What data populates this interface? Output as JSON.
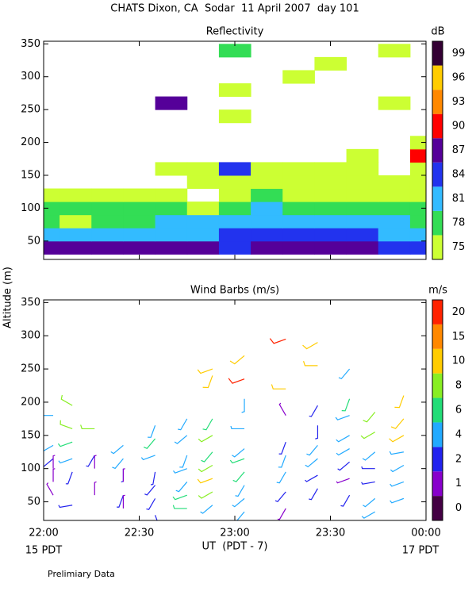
{
  "title": "CHATS Dixon, CA  Sodar  11 April 2007  day 101",
  "y_axis_label": "Altitude (m)",
  "x_axis_label": "UT  (PDT - 7)",
  "start_label": "15 PDT",
  "end_label": "17 PDT",
  "footnote": "Prelimiary Data",
  "chart_data": [
    {
      "type": "heatmap",
      "title": "Reflectivity",
      "x": [
        0,
        10,
        20,
        30,
        40,
        50,
        60,
        70,
        80,
        90,
        100,
        110,
        120
      ],
      "y": [
        40,
        60,
        80,
        100,
        120,
        140,
        160,
        180,
        200,
        220,
        240,
        260,
        280,
        300,
        320,
        340
      ],
      "z": [
        [
          87,
          87,
          87,
          87,
          87,
          87,
          84,
          87,
          87,
          87,
          87,
          84,
          84
        ],
        [
          81,
          81,
          81,
          81,
          81,
          81,
          84,
          84,
          84,
          84,
          84,
          81,
          81
        ],
        [
          78,
          75,
          78,
          78,
          81,
          81,
          81,
          81,
          81,
          81,
          81,
          81,
          78
        ],
        [
          78,
          78,
          78,
          78,
          78,
          75,
          78,
          81,
          78,
          78,
          78,
          78,
          78
        ],
        [
          75,
          75,
          75,
          75,
          75,
          null,
          75,
          78,
          75,
          75,
          75,
          75,
          75
        ],
        [
          null,
          null,
          null,
          null,
          null,
          75,
          75,
          75,
          75,
          75,
          75,
          75,
          75
        ],
        [
          null,
          null,
          null,
          null,
          75,
          75,
          84,
          75,
          75,
          75,
          75,
          null,
          75
        ],
        [
          null,
          null,
          null,
          null,
          null,
          null,
          null,
          null,
          null,
          null,
          75,
          null,
          90
        ],
        [
          null,
          null,
          null,
          null,
          null,
          null,
          null,
          null,
          null,
          null,
          null,
          null,
          75
        ],
        [
          null,
          null,
          null,
          null,
          null,
          null,
          null,
          null,
          null,
          null,
          null,
          null,
          null
        ],
        [
          null,
          null,
          null,
          null,
          null,
          null,
          75,
          null,
          null,
          null,
          null,
          null,
          null
        ],
        [
          null,
          null,
          null,
          null,
          87,
          null,
          null,
          null,
          null,
          null,
          null,
          75,
          null
        ],
        [
          null,
          null,
          null,
          null,
          null,
          null,
          75,
          null,
          null,
          null,
          null,
          null,
          null
        ],
        [
          null,
          null,
          null,
          null,
          null,
          null,
          null,
          null,
          75,
          null,
          null,
          null,
          null
        ],
        [
          null,
          null,
          null,
          null,
          null,
          null,
          null,
          null,
          null,
          75,
          null,
          null,
          null
        ],
        [
          null,
          null,
          null,
          null,
          null,
          null,
          78,
          null,
          null,
          null,
          null,
          75,
          null
        ]
      ],
      "xlim": [
        0,
        120
      ],
      "xticks": [
        0,
        30,
        60,
        90,
        120
      ],
      "ylim": [
        22,
        354
      ],
      "yticks": [
        50,
        100,
        150,
        200,
        250,
        300,
        350
      ],
      "colorbar": {
        "label": "dB",
        "levels": [
          75,
          78,
          81,
          84,
          87,
          90,
          93,
          96,
          99
        ],
        "colors": [
          "#ccff33",
          "#33dd55",
          "#33bbff",
          "#2233ee",
          "#550099",
          "#ff0000",
          "#ff8800",
          "#ffcc00",
          "#330033"
        ]
      }
    },
    {
      "type": "barbs",
      "title": "Wind Barbs (m/s)",
      "columns": [
        {
          "x": 3,
          "y": [
            180,
            135,
            115,
            100,
            80,
            60
          ],
          "speed": [
            4,
            5,
            3,
            1,
            1,
            1
          ],
          "direction": [
            270,
            240,
            230,
            0,
            0,
            330
          ]
        },
        {
          "x": 9,
          "y": [
            195,
            160,
            140,
            115,
            95,
            45
          ],
          "speed": [
            8,
            8,
            6,
            4,
            2,
            3
          ],
          "direction": [
            300,
            290,
            250,
            250,
            200,
            260
          ]
        },
        {
          "x": 16,
          "y": [
            160,
            120,
            100,
            60
          ],
          "speed": [
            8,
            2,
            1,
            1
          ],
          "direction": [
            270,
            210,
            0,
            0
          ]
        },
        {
          "x": 25,
          "y": [
            135,
            115,
            100,
            80,
            60,
            40
          ],
          "speed": [
            5,
            5,
            2,
            1,
            2,
            1
          ],
          "direction": [
            230,
            220,
            180,
            0,
            200,
            0
          ]
        },
        {
          "x": 35,
          "y": [
            165,
            145,
            120,
            95,
            75,
            55,
            30
          ],
          "speed": [
            5,
            6,
            4,
            2,
            3,
            3,
            2
          ],
          "direction": [
            200,
            220,
            250,
            190,
            220,
            210,
            160
          ]
        },
        {
          "x": 45,
          "y": [
            175,
            150,
            120,
            100,
            80,
            60,
            40
          ],
          "speed": [
            4,
            5,
            5,
            4,
            5,
            6,
            6
          ],
          "direction": [
            210,
            230,
            200,
            250,
            220,
            250,
            270
          ]
        },
        {
          "x": 53,
          "y": [
            250,
            240,
            175,
            150,
            125,
            105,
            85,
            65,
            45
          ],
          "speed": [
            10,
            12,
            6,
            8,
            6,
            8,
            10,
            8,
            4
          ],
          "direction": [
            250,
            200,
            210,
            240,
            220,
            240,
            250,
            240,
            230
          ]
        },
        {
          "x": 63,
          "y": [
            270,
            235,
            205,
            160,
            130,
            115,
            95,
            75,
            55,
            35
          ],
          "speed": [
            12,
            20,
            4,
            4,
            5,
            6,
            6,
            4,
            4,
            4
          ],
          "direction": [
            230,
            250,
            180,
            270,
            230,
            250,
            220,
            210,
            230,
            220
          ]
        },
        {
          "x": 76,
          "y": [
            295,
            220,
            180,
            140,
            120,
            95,
            65,
            40
          ],
          "speed": [
            20,
            10,
            1,
            3,
            5,
            4,
            3,
            1
          ],
          "direction": [
            250,
            270,
            330,
            200,
            200,
            210,
            220,
            210
          ]
        },
        {
          "x": 86,
          "y": [
            290,
            255,
            195,
            165,
            135,
            115,
            90,
            70
          ],
          "speed": [
            12,
            10,
            2,
            3,
            5,
            5,
            2,
            3
          ],
          "direction": [
            240,
            270,
            210,
            180,
            220,
            230,
            240,
            210
          ]
        },
        {
          "x": 96,
          "y": [
            250,
            205,
            180,
            150,
            130,
            110,
            85,
            60
          ],
          "speed": [
            4,
            6,
            5,
            5,
            4,
            3,
            1,
            3
          ],
          "direction": [
            220,
            200,
            250,
            240,
            240,
            230,
            250,
            210
          ]
        },
        {
          "x": 104,
          "y": [
            185,
            155,
            125,
            100,
            80,
            55,
            35
          ],
          "speed": [
            8,
            8,
            5,
            2,
            2,
            4,
            4
          ],
          "direction": [
            220,
            240,
            230,
            270,
            260,
            230,
            240
          ]
        },
        {
          "x": 113,
          "y": [
            210,
            175,
            150,
            125,
            105,
            80,
            55
          ],
          "speed": [
            10,
            10,
            10,
            5,
            4,
            4,
            4
          ],
          "direction": [
            200,
            220,
            240,
            260,
            240,
            250,
            250
          ]
        }
      ],
      "xlim": [
        0,
        120
      ],
      "xticks": [
        {
          "value": 0,
          "label": "22:00"
        },
        {
          "value": 30,
          "label": "22:30"
        },
        {
          "value": 60,
          "label": "23:00"
        },
        {
          "value": 90,
          "label": "23:30"
        },
        {
          "value": 120,
          "label": "00:00"
        }
      ],
      "ylim": [
        22,
        354
      ],
      "yticks": [
        50,
        100,
        150,
        200,
        250,
        300,
        350
      ],
      "colorbar": {
        "label": "m/s",
        "levels": [
          0,
          1,
          2,
          4,
          6,
          8,
          10,
          15,
          20
        ],
        "colors": [
          "#440044",
          "#8800cc",
          "#2222ee",
          "#22aaff",
          "#22dd77",
          "#88ee22",
          "#ffcc00",
          "#ff8800",
          "#ff2200"
        ]
      }
    }
  ]
}
